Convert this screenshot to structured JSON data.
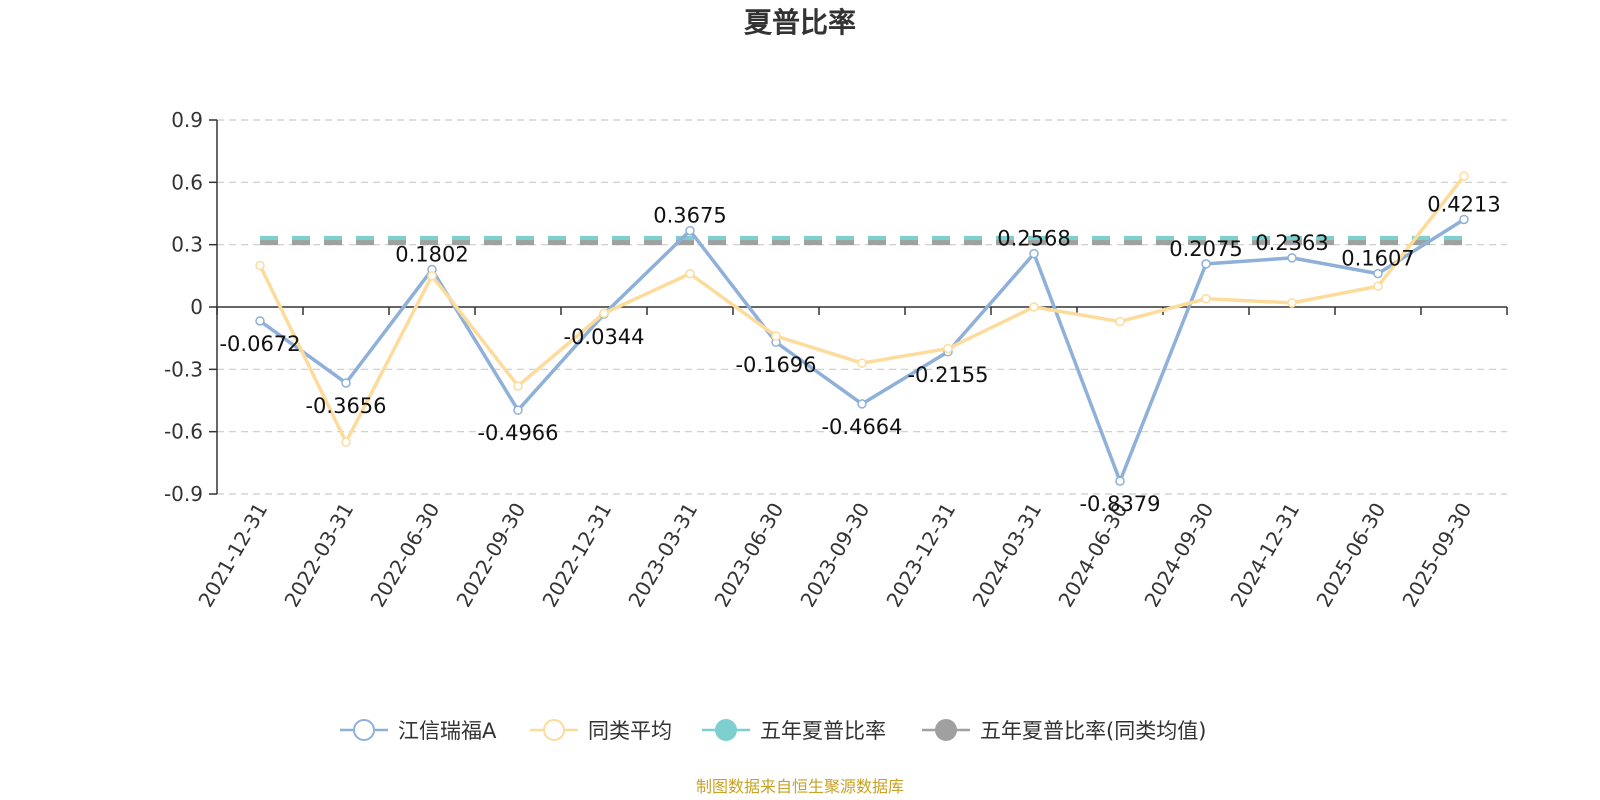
{
  "chart_data": {
    "type": "line",
    "title": "夏普比率",
    "categories": [
      "2021-12-31",
      "2022-03-31",
      "2022-06-30",
      "2022-09-30",
      "2022-12-31",
      "2023-03-31",
      "2023-06-30",
      "2023-09-30",
      "2023-12-31",
      "2024-03-31",
      "2024-06-30",
      "2024-09-30",
      "2024-12-31",
      "2025-06-30",
      "2025-09-30"
    ],
    "yticks": [
      "0.9",
      "0.6",
      "0.3",
      "0",
      "-0.3",
      "-0.6",
      "-0.9"
    ],
    "ylim": [
      -0.9,
      0.9
    ],
    "grid": true,
    "legend_position": "bottom",
    "series": [
      {
        "name": "江信瑞福A",
        "color": "#8eb0d9",
        "values": [
          -0.0672,
          -0.3656,
          0.1802,
          -0.4966,
          -0.0344,
          0.3675,
          -0.1696,
          -0.4664,
          -0.2155,
          0.2568,
          -0.8379,
          0.2075,
          0.2363,
          0.1607,
          0.4213
        ],
        "labels": [
          "-0.0672",
          "-0.3656",
          "0.1802",
          "-0.4966",
          "-0.0344",
          "0.3675",
          "-0.1696",
          "-0.4664",
          "-0.2155",
          "0.2568",
          "-0.8379",
          "0.2075",
          "0.2363",
          "0.1607",
          "0.4213"
        ]
      },
      {
        "name": "同类平均",
        "color": "#fddc9b",
        "values": [
          0.2,
          -0.65,
          0.15,
          -0.38,
          -0.03,
          0.16,
          -0.14,
          -0.27,
          -0.2,
          0.0,
          -0.07,
          0.04,
          0.02,
          0.1,
          0.63
        ]
      },
      {
        "name": "五年夏普比率",
        "color": "#7ecfcf",
        "values_constant": 0.33
      },
      {
        "name": "五年夏普比率(同类均值)",
        "color": "#a0a0a0",
        "values_constant": 0.31
      }
    ]
  },
  "source_text": "制图数据来自恒生聚源数据库"
}
